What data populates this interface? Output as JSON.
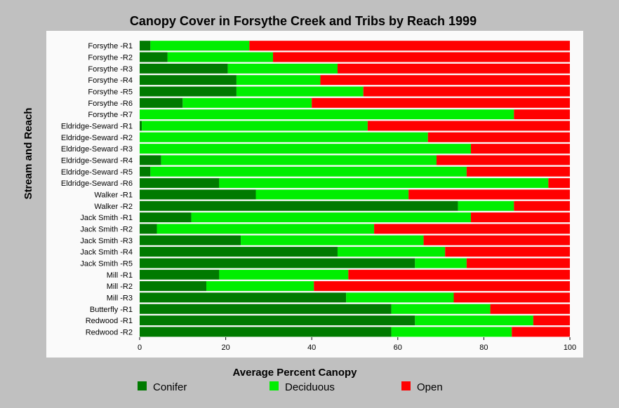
{
  "chart_data": {
    "type": "bar",
    "orientation": "horizontal",
    "stacked": true,
    "title": "Canopy Cover in Forsythe Creek and Tribs by Reach 1999",
    "xlabel": "Average Percent Canopy",
    "ylabel": "Stream and Reach",
    "xlim": [
      0,
      100
    ],
    "xticks": [
      0,
      20,
      40,
      60,
      80,
      100
    ],
    "grid": false,
    "legend_position": "bottom",
    "colors": {
      "Conifer": "#007a00",
      "Deciduous": "#00ee00",
      "Open": "#ff0000"
    },
    "categories": [
      "Forsythe -R1",
      "Forsythe -R2",
      "Forsythe -R3",
      "Forsythe -R4",
      "Forsythe -R5",
      "Forsythe -R6",
      "Forsythe -R7",
      "Eldridge-Seward -R1",
      "Eldridge-Seward -R2",
      "Eldridge-Seward -R3",
      "Eldridge-Seward -R4",
      "Eldridge-Seward -R5",
      "Eldridge-Seward -R6",
      "Walker -R1",
      "Walker -R2",
      "Jack Smith -R1",
      "Jack Smith -R2",
      "Jack Smith -R3",
      "Jack Smith -R4",
      "Jack Smith -R5",
      "Mill -R1",
      "Mill -R2",
      "Mill -R3",
      "Butterfly -R1",
      "Redwood -R1",
      "Redwood -R2"
    ],
    "series": [
      {
        "name": "Conifer",
        "values": [
          2.5,
          6.5,
          20.5,
          22.5,
          22.5,
          10,
          0,
          0.5,
          0,
          0,
          5,
          2.5,
          18.5,
          27,
          74,
          12,
          4,
          23.5,
          46,
          64,
          18.5,
          15.5,
          48,
          58.5,
          64,
          58.5
        ]
      },
      {
        "name": "Deciduous",
        "values": [
          23,
          24.5,
          25.5,
          19.5,
          29.5,
          30,
          87,
          52.5,
          67,
          77,
          64,
          73.5,
          76.5,
          35.5,
          13,
          65,
          50.5,
          42.5,
          25,
          12,
          30,
          25,
          25,
          23,
          27.5,
          28
        ]
      },
      {
        "name": "Open",
        "values": [
          74.5,
          69,
          54,
          58,
          48,
          60,
          13,
          47,
          33,
          23,
          31,
          24,
          5,
          37.5,
          13,
          23,
          45.5,
          34,
          29,
          24,
          51.5,
          59.5,
          27,
          18.5,
          8.5,
          13.5
        ]
      }
    ]
  }
}
